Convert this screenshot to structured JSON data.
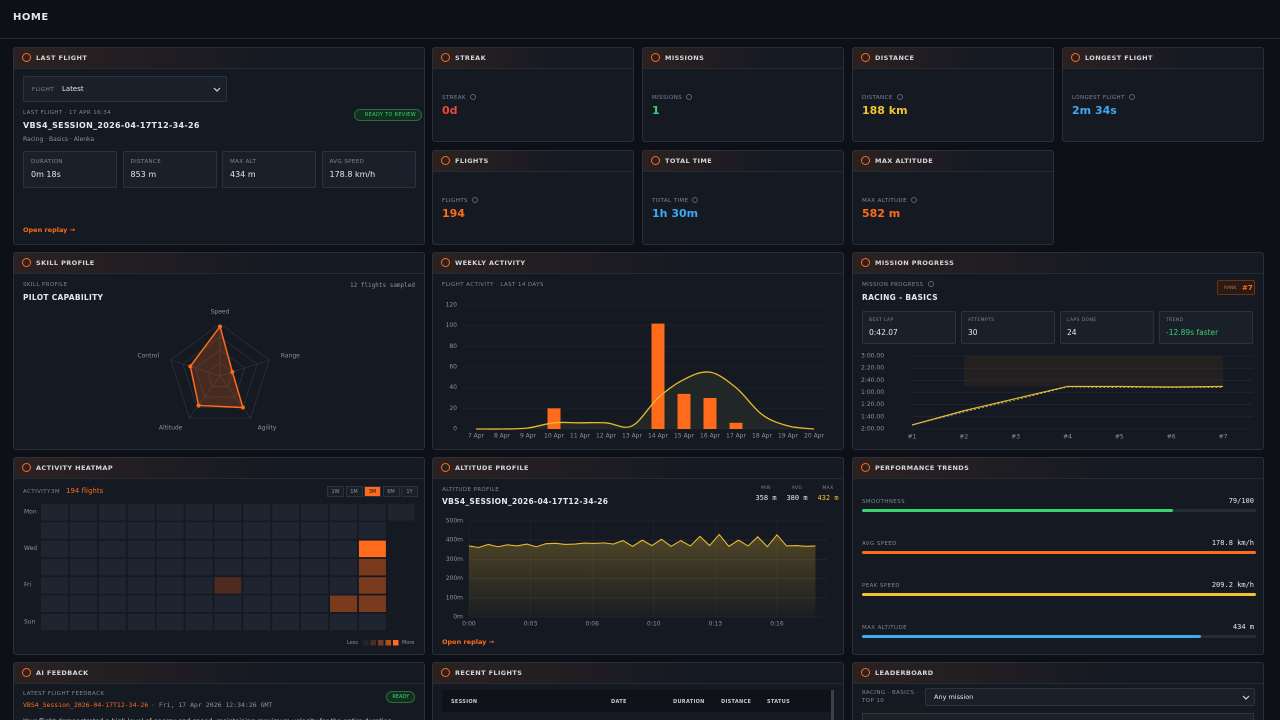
{
  "header": {
    "title": "HOME"
  },
  "last_flight": {
    "title": "LAST FLIGHT",
    "selector_label": "FLIGHT",
    "selector_value": "Latest",
    "meta": "LAST FLIGHT · 17 APR 16:34",
    "badge": "READY TO REVIEW",
    "session": "VBS4_SESSION_2026-04-17T12-34-26",
    "tags": "Racing · Basics · Alenka",
    "stats": [
      {
        "label": "DURATION",
        "value": "0m 18s"
      },
      {
        "label": "DISTANCE",
        "value": "853 m"
      },
      {
        "label": "MAX ALT",
        "value": "434 m"
      },
      {
        "label": "AVG SPEED",
        "value": "178.8 km/h"
      }
    ],
    "link": "Open replay →"
  },
  "stat_cards": [
    {
      "title": "STREAK",
      "label": "STREAK",
      "value": "0d",
      "color": "#f0463c"
    },
    {
      "title": "MISSIONS",
      "label": "MISSIONS",
      "value": 1,
      "color": "#3ad16f"
    },
    {
      "title": "DISTANCE",
      "label": "DISTANCE",
      "value": "188 km",
      "color": "#f2c230"
    },
    {
      "title": "LONGEST FLIGHT",
      "label": "LONGEST FLIGHT",
      "value": "2m 34s",
      "color": "#3fa9f5"
    },
    {
      "title": "FLIGHTS",
      "label": "FLIGHTS",
      "value": 194,
      "color": "#ff6b1a"
    },
    {
      "title": "TOTAL TIME",
      "label": "TOTAL TIME",
      "value": "1h 30m",
      "color": "#3fa9f5"
    },
    {
      "title": "MAX ALTITUDE",
      "label": "MAX ALTITUDE",
      "value": "582 m",
      "color": "#ff6b1a"
    }
  ],
  "skill_profile": {
    "title": "SKILL PROFILE",
    "subtitle": "SKILL PROFILE",
    "heading": "PILOT CAPABILITY",
    "note": "12 flights sampled",
    "chart_data": {
      "type": "radar",
      "categories": [
        "Speed",
        "Range",
        "Agility",
        "Altitude",
        "Control"
      ],
      "values": [
        95,
        25,
        75,
        70,
        60
      ],
      "rlim": [
        0,
        100
      ],
      "color": "#ff6b1a"
    }
  },
  "weekly_activity": {
    "title": "WEEKLY ACTIVITY",
    "subtitle": "FLIGHT ACTIVITY · LAST 14 DAYS",
    "chart_data": {
      "type": "bar",
      "categories": [
        "7 Apr",
        "8 Apr",
        "9 Apr",
        "10 Apr",
        "11 Apr",
        "12 Apr",
        "13 Apr",
        "14 Apr",
        "15 Apr",
        "16 Apr",
        "17 Apr",
        "18 Apr",
        "19 Apr",
        "20 Apr"
      ],
      "bars": {
        "color": "#ff6b1a",
        "values": [
          0,
          0,
          0,
          20,
          0,
          0,
          0,
          102,
          34,
          30,
          6,
          0,
          0,
          0
        ]
      },
      "trend": {
        "color": "#e8b931",
        "values": [
          0,
          0,
          1,
          6,
          6,
          6,
          3,
          30,
          48,
          55,
          40,
          14,
          3,
          0
        ]
      },
      "ylim": [
        0,
        120
      ],
      "yticks": [
        0,
        20,
        40,
        60,
        80,
        100,
        120
      ],
      "grid": true
    }
  },
  "mission_progress": {
    "title": "MISSION PROGRESS",
    "subtitle": "MISSION PROGRESS",
    "heading": "RACING - BASICS",
    "rank_label": "RANK",
    "rank": "#7",
    "stats": [
      {
        "label": "BEST LAP",
        "value": "0:42.07"
      },
      {
        "label": "ATTEMPTS",
        "value": 30
      },
      {
        "label": "LAPS DONE",
        "value": 24
      },
      {
        "label": "TREND",
        "value": "-12.89s faster",
        "color": "#3ad16f"
      }
    ],
    "chart_data": {
      "type": "line",
      "categories": [
        "#1",
        "#2",
        "#3",
        "#4",
        "#5",
        "#6",
        "#7"
      ],
      "series": [
        {
          "color": "#e8b931",
          "values": [
            0.33,
            1.5,
            2.5,
            3.5,
            3.5,
            3.45,
            3.5
          ]
        },
        {
          "color": "#c9b27a",
          "dash": true,
          "values": [
            0.33,
            1.4,
            2.4,
            3.45,
            3.4,
            3.4,
            3.4
          ]
        }
      ],
      "ylim": [
        0,
        6
      ],
      "yticks": [
        {
          "value": 6,
          "label": "3:00.00"
        },
        {
          "value": 5,
          "label": "2:20.00"
        },
        {
          "value": 4,
          "label": "2:40.00"
        },
        {
          "value": 3,
          "label": "1:00.00"
        },
        {
          "value": 2,
          "label": "1:20.00"
        },
        {
          "value": 1,
          "label": "1:40.00"
        },
        {
          "value": 0,
          "label": "2:00.00"
        }
      ],
      "grid": true
    }
  },
  "activity_heatmap": {
    "title": "ACTIVITY HEATMAP",
    "label": "ACTIVITY",
    "range": "3M",
    "count": "194 flights",
    "ranges": [
      "1W",
      "1M",
      "3M",
      "6M",
      "1Y"
    ],
    "active_range": 2,
    "legend_less": "Less",
    "legend_more": "More",
    "chart_data": {
      "type": "heatmap",
      "rows": [
        "Mon",
        null,
        "Wed",
        null,
        "Fri",
        null,
        "Sun"
      ],
      "colors": [
        "#1f2530",
        "#4e2a20",
        "#7a3a1e",
        "#b24f1f",
        "#ff6b1a"
      ],
      "values": [
        [
          0,
          0,
          0,
          0,
          0,
          0,
          0,
          0,
          0,
          0,
          0,
          0,
          0
        ],
        [
          0,
          0,
          0,
          0,
          0,
          0,
          0,
          0,
          0,
          0,
          0,
          0,
          null
        ],
        [
          0,
          0,
          0,
          0,
          0,
          0,
          0,
          0,
          0,
          0,
          0,
          4,
          null
        ],
        [
          0,
          0,
          0,
          0,
          0,
          0,
          0,
          0,
          0,
          0,
          0,
          2,
          null
        ],
        [
          0,
          0,
          0,
          0,
          0,
          0,
          1,
          0,
          0,
          0,
          0,
          2,
          null
        ],
        [
          0,
          0,
          0,
          0,
          0,
          0,
          0,
          0,
          0,
          0,
          2,
          2,
          null
        ],
        [
          0,
          0,
          0,
          0,
          0,
          0,
          0,
          0,
          0,
          0,
          0,
          0,
          null
        ]
      ]
    }
  },
  "altitude_profile": {
    "title": "ALTITUDE PROFILE",
    "subtitle": "ALTITUDE PROFILE",
    "session": "VBS4_SESSION_2026-04-17T12-34-26",
    "stats": [
      {
        "label": "MIN",
        "value": "358 m"
      },
      {
        "label": "AVG",
        "value": "380 m"
      },
      {
        "label": "MAX",
        "value": "432 m",
        "color": "#f2c230"
      }
    ],
    "link": "Open replay →",
    "chart_data": {
      "type": "line",
      "color": "#e8b931",
      "x": [
        0,
        0.5,
        1,
        1.5,
        2,
        2.5,
        3,
        3.5,
        4,
        4.5,
        5,
        5.5,
        6,
        6.5,
        7,
        7.5,
        8,
        8.5,
        9,
        9.5,
        10,
        10.5,
        11,
        11.5,
        12,
        12.5,
        13,
        13.5,
        14,
        14.5,
        15,
        15.5,
        16,
        16.5,
        17,
        17.5,
        18
      ],
      "values": [
        370,
        362,
        378,
        366,
        376,
        370,
        380,
        366,
        382,
        384,
        378,
        380,
        385,
        383,
        386,
        380,
        398,
        368,
        400,
        372,
        405,
        368,
        398,
        370,
        420,
        372,
        430,
        368,
        400,
        370,
        418,
        366,
        428,
        370,
        372,
        368,
        370
      ],
      "xlim": [
        0,
        18.6
      ],
      "xticks": [
        {
          "value": 0,
          "label": "0:00"
        },
        {
          "value": 3.2,
          "label": "0:03"
        },
        {
          "value": 6.4,
          "label": "0:06"
        },
        {
          "value": 9.6,
          "label": "0:10"
        },
        {
          "value": 12.8,
          "label": "0:13"
        },
        {
          "value": 16,
          "label": "0:16"
        }
      ],
      "ylim": [
        0,
        500
      ],
      "yticks": [
        {
          "value": 0,
          "label": "0m"
        },
        {
          "value": 100,
          "label": "100m"
        },
        {
          "value": 200,
          "label": "200m"
        },
        {
          "value": 300,
          "label": "300m"
        },
        {
          "value": 400,
          "label": "400m"
        },
        {
          "value": 500,
          "label": "500m"
        }
      ],
      "grid": true
    }
  },
  "performance_trends": {
    "title": "PERFORMANCE TRENDS",
    "items": [
      {
        "label": "SMOOTHNESS",
        "value_label": "79/100",
        "bar_percent": 79,
        "color": "#3ad16f"
      },
      {
        "label": "AVG SPEED",
        "value_label": "178.8 km/h",
        "bar_percent": 100,
        "color": "#ff6b1a"
      },
      {
        "label": "PEAK SPEED",
        "value_label": "209.2 km/h",
        "bar_percent": 100,
        "color": "#f2c230"
      },
      {
        "label": "MAX ALTITUDE",
        "value_label": "434 m",
        "bar_percent": 86,
        "color": "#3fa9f5"
      }
    ]
  },
  "ai_feedback": {
    "title": "AI FEEDBACK",
    "subtitle": "LATEST FLIGHT FEEDBACK",
    "session": "VBS4_Session_2026-04-17T12-34-26",
    "date": "· Fri, 17 Apr 2026 12:34:26 GMT",
    "badge": "READY",
    "text": "Your flight demonstrated a high level of energy and speed, maintaining maximum velocity for the entire duration"
  },
  "recent_flights": {
    "title": "RECENT FLIGHTS",
    "columns": [
      "SESSION",
      "DATE",
      "DURATION",
      "DISTANCE",
      "STATUS"
    ]
  },
  "leaderboard": {
    "title": "LEADERBOARD",
    "label": "RACING · BASICS ·",
    "label2": "TOP 10",
    "select": "Any mission"
  }
}
